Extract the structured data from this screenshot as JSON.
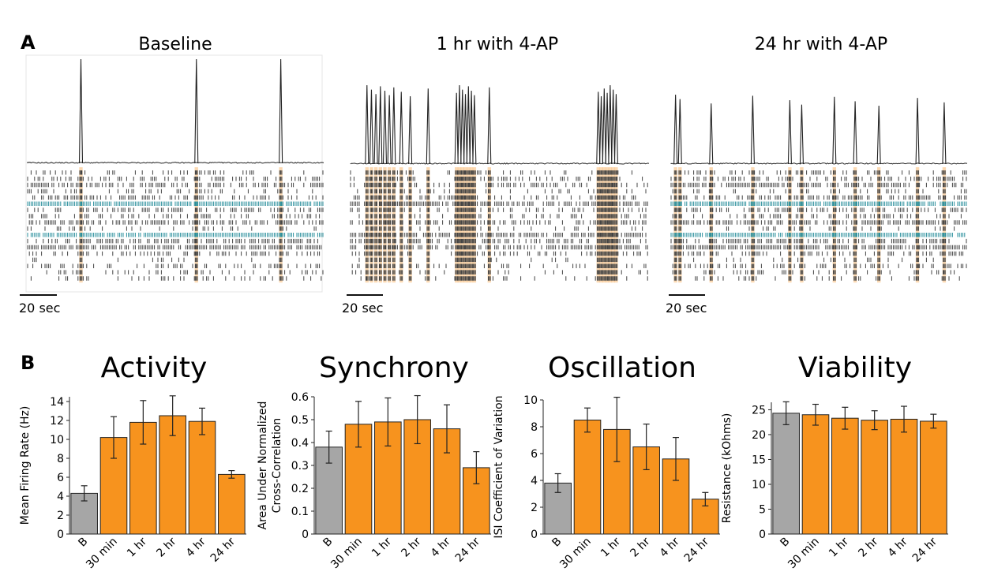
{
  "panel_a": {
    "label": "A",
    "scale_bar_label": "20 sec",
    "conditions": [
      {
        "title": "Baseline",
        "burst_times_sec": [
          36,
          114,
          171
        ]
      },
      {
        "title": "1 hr with 4-AP",
        "burst_times_sec": [
          11,
          14,
          17,
          20,
          23,
          26,
          29,
          34,
          40,
          52,
          71,
          73,
          75,
          77,
          79,
          81,
          83,
          93,
          166,
          168,
          170,
          172,
          174,
          176,
          178
        ]
      },
      {
        "title": "24 hr with 4-AP",
        "burst_times_sec": [
          3,
          6,
          27,
          55,
          80,
          88,
          110,
          124,
          140,
          166,
          184
        ]
      }
    ]
  },
  "panel_b": {
    "label": "B"
  },
  "chart_data": [
    {
      "type": "bar",
      "title": "Activity",
      "xlabel": "",
      "ylabel": "Mean Firing Rate (Hz)",
      "categories": [
        "B",
        "30 min",
        "1 hr",
        "2 hr",
        "4 hr",
        "24 hr"
      ],
      "values": [
        4.3,
        10.2,
        11.8,
        12.5,
        11.9,
        6.3
      ],
      "errors": [
        0.8,
        2.2,
        2.3,
        2.1,
        1.4,
        0.4
      ],
      "ylim": [
        0,
        14.5
      ],
      "yticks": [
        0,
        2,
        4,
        6,
        8,
        10,
        12,
        14
      ],
      "colors": [
        "#a6a6a6",
        "#f7931e",
        "#f7931e",
        "#f7931e",
        "#f7931e",
        "#f7931e"
      ]
    },
    {
      "type": "bar",
      "title": "Synchrony",
      "xlabel": "",
      "ylabel": "Area Under Normalized Cross-Correlation",
      "ylabel_lines": [
        "Area Under Normalized",
        "Cross-Correlation"
      ],
      "categories": [
        "B",
        "30 min",
        "1 hr",
        "2 hr",
        "4 hr",
        "24 hr"
      ],
      "values": [
        0.38,
        0.48,
        0.49,
        0.5,
        0.46,
        0.29
      ],
      "errors": [
        0.07,
        0.1,
        0.105,
        0.105,
        0.105,
        0.07
      ],
      "ylim": [
        0,
        0.6
      ],
      "yticks": [
        0,
        0.1,
        0.2,
        0.3,
        0.4,
        0.5,
        0.6
      ],
      "colors": [
        "#a6a6a6",
        "#f7931e",
        "#f7931e",
        "#f7931e",
        "#f7931e",
        "#f7931e"
      ]
    },
    {
      "type": "bar",
      "title": "Oscillation",
      "xlabel": "",
      "ylabel": "ISI Coefficient of Variation",
      "categories": [
        "B",
        "30 min",
        "1 hr",
        "2 hr",
        "4 hr",
        "24 hr"
      ],
      "values": [
        3.8,
        8.5,
        7.8,
        6.5,
        5.6,
        2.6
      ],
      "errors": [
        0.7,
        0.9,
        2.4,
        1.7,
        1.6,
        0.5
      ],
      "ylim": [
        0,
        10
      ],
      "yticks": [
        0,
        2,
        4,
        6,
        8,
        10
      ],
      "colors": [
        "#a6a6a6",
        "#f7931e",
        "#f7931e",
        "#f7931e",
        "#f7931e",
        "#f7931e"
      ]
    },
    {
      "type": "bar",
      "title": "Viability",
      "xlabel": "",
      "ylabel": "Resistance (kOhms)",
      "categories": [
        "B",
        "30 min",
        "1 hr",
        "2 hr",
        "4 hr",
        "24 hr"
      ],
      "values": [
        24.3,
        24.0,
        23.3,
        22.9,
        23.1,
        22.7
      ],
      "errors": [
        2.3,
        2.1,
        2.2,
        1.9,
        2.6,
        1.4
      ],
      "ylim": [
        0,
        26.5
      ],
      "yticks": [
        0,
        5,
        10,
        15,
        20,
        25
      ],
      "colors": [
        "#a6a6a6",
        "#f7931e",
        "#f7931e",
        "#f7931e",
        "#f7931e",
        "#f7931e"
      ]
    }
  ]
}
